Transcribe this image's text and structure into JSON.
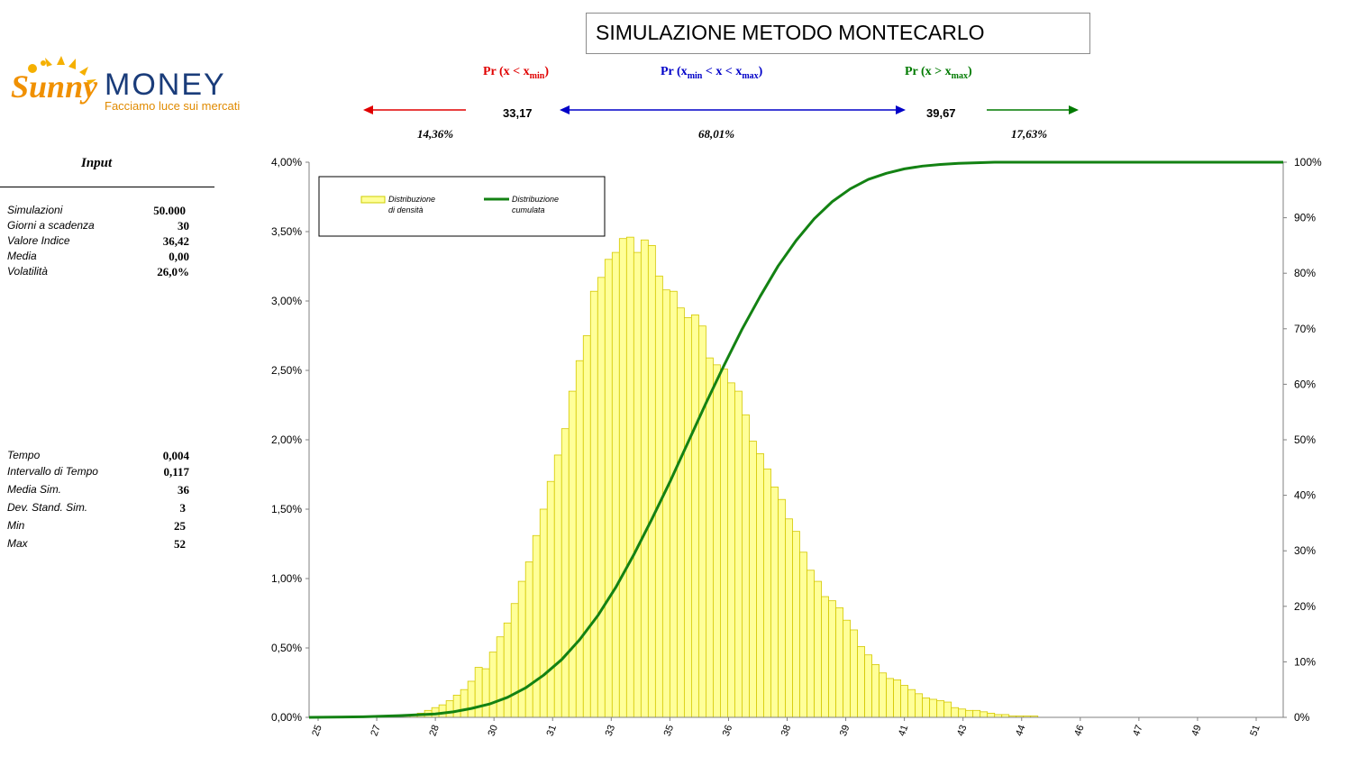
{
  "title": "SIMULAZIONE METODO MONTECARLO",
  "logo": {
    "word1": "Sunny",
    "word2": "MONEY",
    "tagline": "Facciamo luce sui mercati"
  },
  "probabilities": {
    "left": {
      "label": "Pr (x < x",
      "sub": "min",
      "close": ")",
      "value": "14,36%",
      "color": "#e00000"
    },
    "middle": {
      "label_a": "Pr (x",
      "sub_a": "min",
      "label_b": " < x < x",
      "sub_b": "max",
      "close": ")",
      "value": "68,01%",
      "color": "#0000c8"
    },
    "right": {
      "label": "Pr (x > x",
      "sub": "max",
      "close": ")",
      "value": "17,63%",
      "color": "#007a00"
    },
    "xmin": "33,17",
    "xmax": "39,67"
  },
  "input": {
    "title": "Input",
    "block1": [
      {
        "label": "Simulazioni",
        "value": "50.000"
      },
      {
        "label": "Giorni a scadenza",
        "value": "30"
      },
      {
        "label": "Valore Indice",
        "value": "36,42"
      },
      {
        "label": "Media",
        "value": "0,00"
      },
      {
        "label": "Volatilità",
        "value": "26,0%"
      }
    ],
    "block2": [
      {
        "label": "Tempo",
        "value": "0,004"
      },
      {
        "label": "Intervallo di Tempo",
        "value": "0,117"
      },
      {
        "label": "Media Sim.",
        "value": "36"
      },
      {
        "label": "Dev. Stand. Sim.",
        "value": "3"
      },
      {
        "label": "Min",
        "value": "25"
      },
      {
        "label": "Max",
        "value": "52"
      }
    ]
  },
  "chart_data": {
    "type": "bar",
    "legend": [
      {
        "line1": "Distribuzione",
        "line2": "di densità",
        "color": "#ffff99"
      },
      {
        "line1": "Distribuzione",
        "line2": "cumulata",
        "color": "#138213"
      }
    ],
    "legend_position": "top-left",
    "y_left_ticks": [
      "0,00%",
      "0,50%",
      "1,00%",
      "1,50%",
      "2,00%",
      "2,50%",
      "3,00%",
      "3,50%",
      "4,00%"
    ],
    "y_left_range": [
      0,
      4
    ],
    "y_right_ticks": [
      "0%",
      "10%",
      "20%",
      "30%",
      "40%",
      "50%",
      "60%",
      "70%",
      "80%",
      "90%",
      "100%"
    ],
    "y_right_range": [
      0,
      100
    ],
    "x_tick_labels": [
      "25",
      "27",
      "28",
      "30",
      "31",
      "33",
      "35",
      "36",
      "38",
      "39",
      "41",
      "43",
      "44",
      "46",
      "47",
      "49",
      "51"
    ],
    "x_range": [
      25,
      52
    ],
    "bar_width": 0.2,
    "density_series": {
      "name": "Distribuzione di densità",
      "start": 25,
      "step": 0.2,
      "values": [
        0.0,
        0.0,
        0.0,
        0.0,
        0.0,
        0.0,
        0.0,
        0.0,
        0.0,
        0.0,
        0.01,
        0.01,
        0.01,
        0.02,
        0.02,
        0.03,
        0.05,
        0.07,
        0.09,
        0.12,
        0.16,
        0.2,
        0.26,
        0.36,
        0.35,
        0.47,
        0.58,
        0.68,
        0.82,
        0.98,
        1.12,
        1.31,
        1.5,
        1.7,
        1.89,
        2.08,
        2.35,
        2.57,
        2.75,
        3.07,
        3.17,
        3.3,
        3.35,
        3.45,
        3.46,
        3.35,
        3.44,
        3.4,
        3.18,
        3.08,
        3.07,
        2.95,
        2.88,
        2.9,
        2.82,
        2.59,
        2.54,
        2.51,
        2.41,
        2.35,
        2.18,
        1.99,
        1.9,
        1.79,
        1.66,
        1.57,
        1.43,
        1.34,
        1.19,
        1.06,
        0.98,
        0.87,
        0.84,
        0.79,
        0.7,
        0.63,
        0.51,
        0.45,
        0.38,
        0.32,
        0.28,
        0.27,
        0.23,
        0.2,
        0.17,
        0.14,
        0.13,
        0.12,
        0.11,
        0.07,
        0.06,
        0.05,
        0.05,
        0.04,
        0.03,
        0.02,
        0.02,
        0.01,
        0.01,
        0.01,
        0.01,
        0.0,
        0.0,
        0.0,
        0.0,
        0.0,
        0.0,
        0.0,
        0.0,
        0.0,
        0.0,
        0.0,
        0.0,
        0.0,
        0.0,
        0.0,
        0.0,
        0.0,
        0.0,
        0.0,
        0.0,
        0.0,
        0.0,
        0.0,
        0.0,
        0.0,
        0.0,
        0.0,
        0.0,
        0.0,
        0.0,
        0.0,
        0.0,
        0.0,
        0.0
      ]
    },
    "cumulative_series": {
      "name": "Distribuzione cumulata",
      "x": [
        25,
        26.5,
        27.5,
        28.5,
        29,
        29.5,
        30,
        30.5,
        31,
        31.5,
        32,
        32.5,
        33,
        33.5,
        34,
        34.5,
        35,
        35.5,
        36,
        36.5,
        37,
        37.5,
        38,
        38.5,
        39,
        39.5,
        40,
        40.5,
        41,
        41.5,
        42,
        42.5,
        43,
        43.5,
        44,
        44.5,
        45,
        45.5,
        46,
        46.5,
        47,
        48,
        49,
        52
      ],
      "values": [
        0,
        0.1,
        0.3,
        0.6,
        1.0,
        1.6,
        2.4,
        3.6,
        5.3,
        7.6,
        10.4,
        14.0,
        18.3,
        23.4,
        29.3,
        35.7,
        42.4,
        49.5,
        56.6,
        63.4,
        69.9,
        75.8,
        81.3,
        85.9,
        89.8,
        92.9,
        95.2,
        96.9,
        98.0,
        98.8,
        99.3,
        99.6,
        99.8,
        99.9,
        100,
        100,
        100,
        100,
        100,
        100,
        100,
        100,
        100,
        100
      ]
    }
  }
}
